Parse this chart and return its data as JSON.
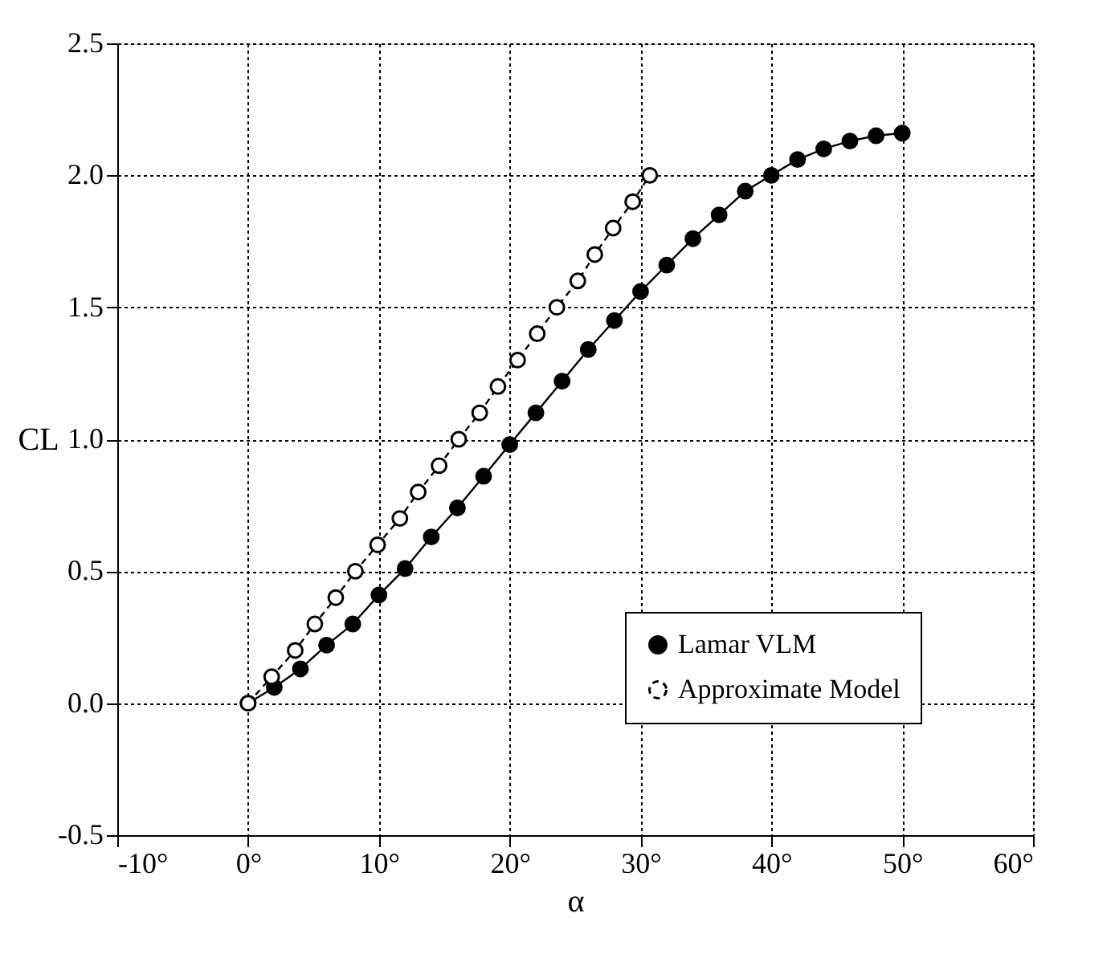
{
  "chart_data": {
    "type": "line",
    "xlabel": "α",
    "ylabel": "CL",
    "xlim": [
      -10,
      60
    ],
    "ylim": [
      -0.5,
      2.5
    ],
    "xticks": [
      {
        "value": -10,
        "label": "-10°"
      },
      {
        "value": 0,
        "label": "0°"
      },
      {
        "value": 10,
        "label": "10°"
      },
      {
        "value": 20,
        "label": "20°"
      },
      {
        "value": 30,
        "label": "30°"
      },
      {
        "value": 40,
        "label": "40°"
      },
      {
        "value": 50,
        "label": "50°"
      },
      {
        "value": 60,
        "label": "60°"
      }
    ],
    "yticks": [
      -0.5,
      {
        "value": 0,
        "label": "0.0"
      },
      0.5,
      {
        "value": 1,
        "label": "1.0"
      },
      1.5,
      {
        "value": 2,
        "label": "2.0"
      },
      2.5
    ],
    "grid": true,
    "legend": "bottom right",
    "marker": "circle",
    "series": [
      {
        "name": "Lamar VLM",
        "color": "#000000",
        "line_style": "solid",
        "x": [
          0,
          2,
          4,
          6,
          8,
          10,
          12,
          14,
          16,
          18,
          20,
          22,
          24,
          26,
          28,
          30,
          32,
          34,
          36,
          38,
          40,
          42,
          44,
          46,
          48,
          50
        ],
        "values": [
          0,
          0.06,
          0.13,
          0.22,
          0.3,
          0.41,
          0.51,
          0.63,
          0.74,
          0.86,
          0.98,
          1.1,
          1.22,
          1.34,
          1.45,
          1.56,
          1.66,
          1.76,
          1.85,
          1.94,
          2.0,
          2.06,
          2.1,
          2.13,
          2.15,
          2.16
        ]
      },
      {
        "name": "Approximate Model",
        "color": "#000000",
        "line_style": "dashed",
        "x": [
          0,
          1.8,
          3.6,
          5.1,
          6.7,
          8.2,
          9.9,
          11.6,
          13.0,
          14.6,
          16.1,
          17.7,
          19.1,
          20.6,
          22.1,
          23.6,
          25.2,
          26.5,
          27.9,
          29.4,
          30.7
        ],
        "values": [
          0,
          0.1,
          0.2,
          0.3,
          0.4,
          0.5,
          0.6,
          0.7,
          0.8,
          0.9,
          1.0,
          1.1,
          1.2,
          1.3,
          1.4,
          1.5,
          1.6,
          1.7,
          1.8,
          1.9,
          2.0
        ]
      }
    ]
  }
}
